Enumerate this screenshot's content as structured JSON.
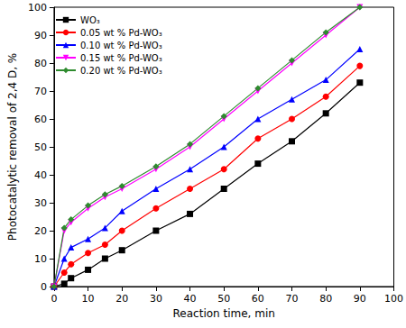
{
  "chart_data": {
    "type": "line",
    "x_label": "Reaction time, min",
    "y_label": "Photocatalytic removal of 2,4 D, %",
    "x": [
      0,
      3,
      5,
      10,
      15,
      20,
      30,
      40,
      50,
      60,
      70,
      80,
      90
    ],
    "series": [
      {
        "name": "WO₃",
        "color": "#000000",
        "marker": "square",
        "values": [
          0,
          1,
          3,
          6,
          10,
          13,
          20,
          26,
          35,
          44,
          52,
          62,
          73
        ]
      },
      {
        "name": "0.05 wt % Pd-WO₃",
        "color": "#ff0000",
        "marker": "circle",
        "values": [
          0,
          5,
          8,
          12,
          15,
          20,
          28,
          35,
          42,
          53,
          60,
          68,
          79
        ]
      },
      {
        "name": "0.10 wt % Pd-WO₃",
        "color": "#0000ff",
        "marker": "triangle",
        "values": [
          0,
          10,
          14,
          17,
          21,
          27,
          35,
          42,
          50,
          60,
          67,
          74,
          85
        ]
      },
      {
        "name": "0.15 wt % Pd-WO₃",
        "color": "#ff00ff",
        "marker": "triangle_down",
        "values": [
          0,
          20,
          23,
          28,
          32,
          35,
          42,
          50,
          60,
          70,
          80,
          90,
          100
        ]
      },
      {
        "name": "0.20 wt % Pd-WO₃",
        "color": "#2e8b2e",
        "marker": "diamond",
        "values": [
          0,
          21,
          24,
          29,
          33,
          36,
          43,
          51,
          61,
          71,
          81,
          91,
          100
        ]
      }
    ],
    "xlim": [
      0,
      100
    ],
    "xticks": [
      0,
      10,
      20,
      30,
      40,
      50,
      60,
      70,
      80,
      90,
      100
    ],
    "ylim": [
      0,
      100
    ],
    "yticks": [
      0,
      10,
      20,
      30,
      40,
      50,
      60,
      70,
      80,
      90,
      100
    ],
    "legend": "upper left",
    "grid": false
  }
}
